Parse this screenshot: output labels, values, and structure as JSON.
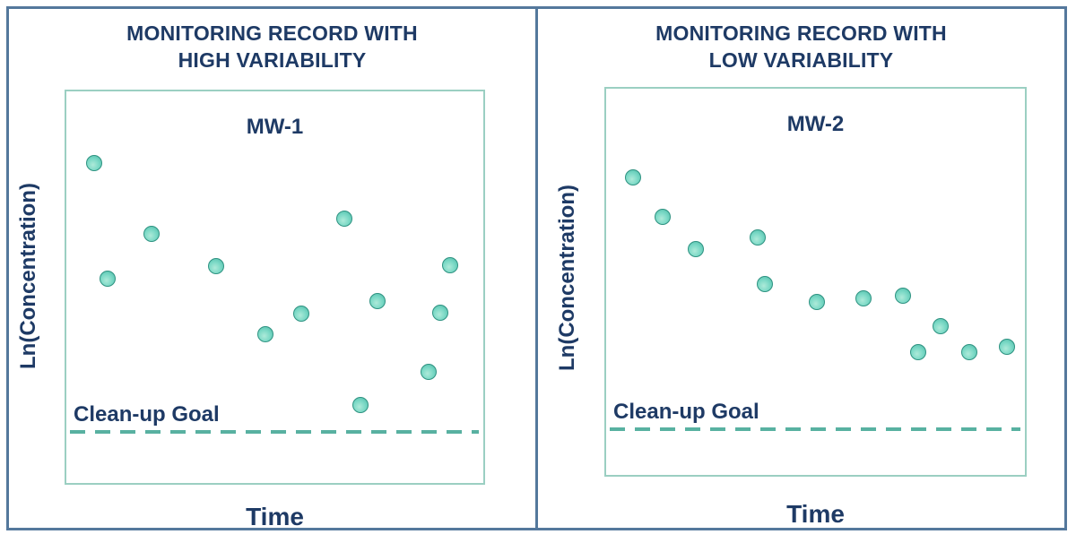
{
  "colors": {
    "navy": "#1e3a65",
    "frame": "#54789c",
    "plot-border": "#9bcfc2",
    "dash": "#58b1a1",
    "dot-fill": "#7bd9c6",
    "dot-rim": "#2e9281"
  },
  "chart_data": [
    {
      "type": "scatter",
      "title": "MONITORING RECORD WITH HIGH VARIABILITY",
      "title_lines": [
        "MONITORING RECORD WITH",
        "HIGH VARIABILITY"
      ],
      "well_label": "MW-1",
      "xlabel": "Time",
      "ylabel": "Ln(Concentration)",
      "axis_ticks": false,
      "grid": false,
      "legend": false,
      "units": "relative-percent-of-plot-area",
      "xlim": [
        0,
        100
      ],
      "ylim": [
        0,
        100
      ],
      "points": [
        {
          "x": 6.6,
          "y": 81.6
        },
        {
          "x": 9.8,
          "y": 52.2
        },
        {
          "x": 20.5,
          "y": 63.7
        },
        {
          "x": 36.0,
          "y": 55.3
        },
        {
          "x": 47.8,
          "y": 38.1
        },
        {
          "x": 56.3,
          "y": 43.3
        },
        {
          "x": 66.7,
          "y": 67.6
        },
        {
          "x": 70.6,
          "y": 20.0
        },
        {
          "x": 74.6,
          "y": 46.5
        },
        {
          "x": 86.8,
          "y": 28.3
        },
        {
          "x": 89.6,
          "y": 43.5
        },
        {
          "x": 92.1,
          "y": 55.6
        }
      ],
      "goal": {
        "label": "Clean-up Goal",
        "y": 12.5,
        "style": "dashed"
      }
    },
    {
      "type": "scatter",
      "title": "MONITORING RECORD WITH LOW VARIABILITY",
      "title_lines": [
        "MONITORING RECORD WITH",
        "LOW VARIABILITY"
      ],
      "well_label": "MW-2",
      "xlabel": "Time",
      "ylabel": "Ln(Concentration)",
      "axis_ticks": false,
      "grid": false,
      "legend": false,
      "units": "relative-percent-of-plot-area",
      "xlim": [
        0,
        100
      ],
      "ylim": [
        0,
        100
      ],
      "points": [
        {
          "x": 6.4,
          "y": 77.0
        },
        {
          "x": 13.4,
          "y": 66.9
        },
        {
          "x": 21.4,
          "y": 58.4
        },
        {
          "x": 36.1,
          "y": 61.6
        },
        {
          "x": 38.0,
          "y": 49.4
        },
        {
          "x": 50.3,
          "y": 44.8
        },
        {
          "x": 61.4,
          "y": 45.7
        },
        {
          "x": 70.9,
          "y": 46.4
        },
        {
          "x": 74.5,
          "y": 31.7
        },
        {
          "x": 79.8,
          "y": 38.6
        },
        {
          "x": 86.8,
          "y": 31.7
        },
        {
          "x": 95.8,
          "y": 33.1
        }
      ],
      "goal": {
        "label": "Clean-up Goal",
        "y": 11.3,
        "style": "dashed"
      }
    }
  ]
}
